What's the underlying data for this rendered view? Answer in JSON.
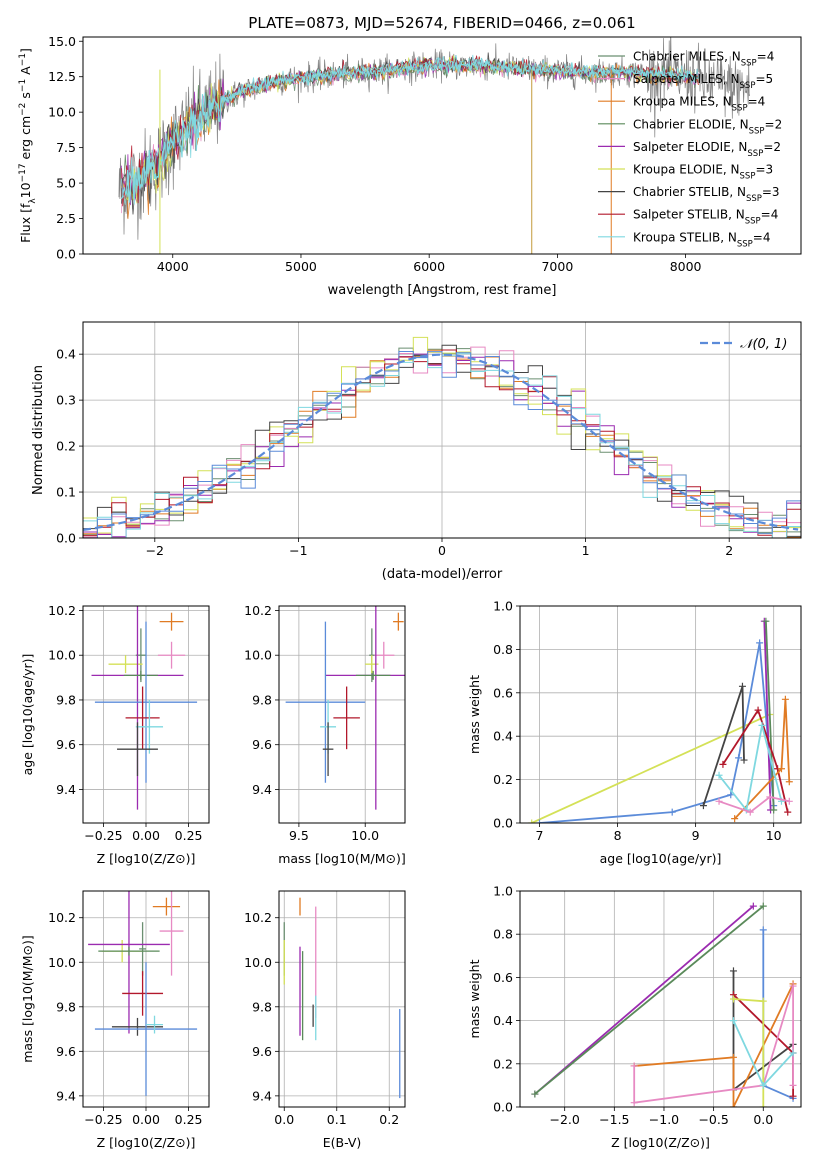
{
  "chart_data": [
    {
      "id": "spectrum",
      "type": "line",
      "title": "PLATE=0873, MJD=52674, FIBERID=0466, z=0.061",
      "xlabel": "wavelength [Angstrom, rest frame]",
      "ylabel_parts": [
        "Flux [f",
        "λ",
        "10",
        "−17",
        " erg cm",
        "−2",
        " s",
        "−1",
        " A",
        "−1",
        "]"
      ],
      "xlim": [
        3300,
        8900
      ],
      "ylim": [
        0,
        15.3
      ],
      "x_ticks": [
        4000,
        5000,
        6000,
        7000,
        8000
      ],
      "y_ticks": [
        0.0,
        2.5,
        5.0,
        7.5,
        10.0,
        12.5,
        15.0
      ],
      "continuum_points": [
        [
          3580,
          4.5
        ],
        [
          3700,
          5.0
        ],
        [
          3900,
          6.5
        ],
        [
          4000,
          7.8
        ],
        [
          4150,
          9.2
        ],
        [
          4300,
          10.3
        ],
        [
          4500,
          11.3
        ],
        [
          4800,
          12.2
        ],
        [
          5200,
          12.6
        ],
        [
          5600,
          12.9
        ],
        [
          6000,
          13.3
        ],
        [
          6400,
          13.3
        ],
        [
          6800,
          13.0
        ],
        [
          7200,
          12.8
        ],
        [
          7500,
          12.8
        ],
        [
          8000,
          12.5
        ],
        [
          8500,
          11.6
        ]
      ],
      "data_color": "#808080",
      "legend": [
        {
          "label": "Chabrier MILES, N",
          "sub": "SSP",
          "suffix": "=4",
          "color": "#6b8f71"
        },
        {
          "label": "Salpeter MILES, N",
          "sub": "SSP",
          "suffix": "=5",
          "color": "#e78ac3"
        },
        {
          "label": "Kroupa MILES, N",
          "sub": "SSP",
          "suffix": "=4",
          "color": "#e07b24"
        },
        {
          "label": "Chabrier ELODIE, N",
          "sub": "SSP",
          "suffix": "=2",
          "color": "#5a8a5a"
        },
        {
          "label": "Salpeter ELODIE, N",
          "sub": "SSP",
          "suffix": "=2",
          "color": "#9b2bb0"
        },
        {
          "label": "Kroupa ELODIE, N",
          "sub": "SSP",
          "suffix": "=3",
          "color": "#d4e157"
        },
        {
          "label": "Chabrier STELIB, N",
          "sub": "SSP",
          "suffix": "=3",
          "color": "#444444"
        },
        {
          "label": "Salpeter STELIB, N",
          "sub": "SSP",
          "suffix": "=4",
          "color": "#b2182b"
        },
        {
          "label": "Kroupa STELIB, N",
          "sub": "SSP",
          "suffix": "=4",
          "color": "#7fd8e0"
        }
      ],
      "grid": false
    },
    {
      "id": "residuals",
      "type": "histogram",
      "xlabel": "(data-model)/error",
      "ylabel": "Normed distribution",
      "xlim": [
        -2.5,
        2.5
      ],
      "ylim": [
        0,
        0.47
      ],
      "x_ticks": [
        -2,
        -1,
        0,
        1,
        2
      ],
      "y_ticks": [
        0.0,
        0.1,
        0.2,
        0.3,
        0.4
      ],
      "bin_width": 0.1,
      "legend": {
        "label": "𝒩(0, 1)",
        "color": "#5b8bd9",
        "style": "dashed",
        "placement": "top-right"
      },
      "series_colors": [
        "#6b8f71",
        "#e78ac3",
        "#e07b24",
        "#9b2bb0",
        "#d4e157",
        "#444444",
        "#b2182b",
        "#7fd8e0",
        "#5b8bd9"
      ],
      "grid": true
    },
    {
      "id": "age_vs_Z",
      "type": "scatter-errorbar",
      "xlabel": "Z [log10(Z/Z⊙)]",
      "ylabel": "age  [log10(age/yr)]",
      "xlim": [
        -0.37,
        0.37
      ],
      "ylim": [
        9.25,
        10.22
      ],
      "x_ticks": [
        -0.25,
        0.0,
        0.25
      ],
      "y_ticks": [
        9.4,
        9.6,
        9.8,
        10.0,
        10.2
      ],
      "points": [
        {
          "x": 0.15,
          "xerr": 0.07,
          "y": 10.15,
          "yerr": 0.04,
          "color": "#e07b24"
        },
        {
          "x": 0.15,
          "xerr": 0.08,
          "y": 10.0,
          "yerr": 0.06,
          "color": "#e78ac3"
        },
        {
          "x": -0.03,
          "xerr": 0.03,
          "y": 10.0,
          "yerr": 0.12,
          "color": "#6b8f71"
        },
        {
          "x": -0.12,
          "xerr": 0.1,
          "y": 9.96,
          "yerr": 0.04,
          "color": "#d4e157"
        },
        {
          "x": -0.05,
          "xerr": 0.27,
          "y": 9.91,
          "yerr": 0.6,
          "color": "#9b2bb0"
        },
        {
          "x": -0.03,
          "xerr": 0.1,
          "y": 9.91,
          "yerr": 0.02,
          "color": "#5a8a5a"
        },
        {
          "x": 0.0,
          "xerr": 0.3,
          "y": 9.79,
          "yerr": 0.36,
          "color": "#5b8bd9"
        },
        {
          "x": -0.02,
          "xerr": 0.1,
          "y": 9.72,
          "yerr": 0.14,
          "color": "#b2182b"
        },
        {
          "x": 0.02,
          "xerr": 0.08,
          "y": 9.68,
          "yerr": 0.12,
          "color": "#7fd8e0"
        },
        {
          "x": -0.05,
          "xerr": 0.12,
          "y": 9.58,
          "yerr": 0.12,
          "color": "#444444"
        }
      ],
      "grid": true
    },
    {
      "id": "age_vs_mass",
      "type": "scatter-errorbar",
      "xlabel": "mass [log10(M/M⊙)]",
      "ylabel": "",
      "xlim": [
        9.35,
        10.3
      ],
      "ylim": [
        9.25,
        10.22
      ],
      "x_ticks": [
        9.5,
        10.0
      ],
      "y_ticks": [
        9.4,
        9.6,
        9.8,
        10.0,
        10.2
      ],
      "points": [
        {
          "x": 10.25,
          "xerr": 0.04,
          "y": 10.15,
          "yerr": 0.04,
          "color": "#e07b24"
        },
        {
          "x": 10.14,
          "xerr": 0.08,
          "y": 10.0,
          "yerr": 0.06,
          "color": "#e78ac3"
        },
        {
          "x": 10.05,
          "xerr": 0.02,
          "y": 10.0,
          "yerr": 0.12,
          "color": "#6b8f71"
        },
        {
          "x": 10.05,
          "xerr": 0.05,
          "y": 9.96,
          "yerr": 0.04,
          "color": "#d4e157"
        },
        {
          "x": 10.08,
          "xerr": 0.38,
          "y": 9.91,
          "yerr": 0.6,
          "color": "#9b2bb0"
        },
        {
          "x": 10.06,
          "xerr": 0.13,
          "y": 9.91,
          "yerr": 0.02,
          "color": "#5a8a5a"
        },
        {
          "x": 9.7,
          "xerr": 0.3,
          "y": 9.79,
          "yerr": 0.36,
          "color": "#5b8bd9"
        },
        {
          "x": 9.86,
          "xerr": 0.1,
          "y": 9.72,
          "yerr": 0.14,
          "color": "#b2182b"
        },
        {
          "x": 9.72,
          "xerr": 0.06,
          "y": 9.68,
          "yerr": 0.12,
          "color": "#7fd8e0"
        },
        {
          "x": 9.72,
          "xerr": 0.04,
          "y": 9.58,
          "yerr": 0.12,
          "color": "#444444"
        }
      ],
      "grid": true
    },
    {
      "id": "massweight_vs_age",
      "type": "line",
      "xlabel": "age  [log10(age/yr)]",
      "ylabel": "mass weight",
      "xlim": [
        6.75,
        10.35
      ],
      "ylim": [
        0,
        1.0
      ],
      "x_ticks": [
        7,
        8,
        9,
        10
      ],
      "y_ticks": [
        0.0,
        0.2,
        0.4,
        0.6,
        0.8,
        1.0
      ],
      "series": [
        {
          "color": "#d4e157",
          "points": [
            [
              6.9,
              0.0
            ],
            [
              9.95,
              0.5
            ]
          ]
        },
        {
          "color": "#5b8bd9",
          "points": [
            [
              7.0,
              0.0
            ],
            [
              8.7,
              0.05
            ],
            [
              9.45,
              0.13
            ],
            [
              9.55,
              0.3
            ],
            [
              9.82,
              0.83
            ],
            [
              10.0,
              0.08
            ]
          ]
        },
        {
          "color": "#9b2bb0",
          "points": [
            [
              9.88,
              0.93
            ],
            [
              9.96,
              0.06
            ]
          ]
        },
        {
          "color": "#5a8a5a",
          "points": [
            [
              9.9,
              0.93
            ],
            [
              10.0,
              0.06
            ]
          ]
        },
        {
          "color": "#444444",
          "points": [
            [
              9.1,
              0.08
            ],
            [
              9.6,
              0.63
            ],
            [
              9.62,
              0.29
            ]
          ]
        },
        {
          "color": "#b2182b",
          "points": [
            [
              9.35,
              0.27
            ],
            [
              9.8,
              0.52
            ],
            [
              10.05,
              0.25
            ],
            [
              10.18,
              0.05
            ]
          ]
        },
        {
          "color": "#e07b24",
          "points": [
            [
              9.5,
              0.02
            ],
            [
              10.1,
              0.25
            ],
            [
              10.15,
              0.57
            ],
            [
              10.2,
              0.19
            ]
          ]
        },
        {
          "color": "#7fd8e0",
          "points": [
            [
              9.3,
              0.22
            ],
            [
              9.65,
              0.06
            ],
            [
              9.85,
              0.45
            ],
            [
              10.1,
              0.1
            ]
          ]
        },
        {
          "color": "#e78ac3",
          "points": [
            [
              9.3,
              0.1
            ],
            [
              9.7,
              0.05
            ],
            [
              9.95,
              0.12
            ],
            [
              10.2,
              0.1
            ]
          ]
        }
      ],
      "grid": true
    },
    {
      "id": "mass_vs_Z",
      "type": "scatter-errorbar",
      "xlabel": "Z [log10(Z/Z⊙)]",
      "ylabel": "mass [log10(M/M⊙)]",
      "xlim": [
        -0.37,
        0.37
      ],
      "ylim": [
        9.35,
        10.32
      ],
      "x_ticks": [
        -0.25,
        0.0,
        0.25
      ],
      "y_ticks": [
        9.4,
        9.6,
        9.8,
        10.0,
        10.2
      ],
      "points": [
        {
          "x": 0.12,
          "xerr": 0.08,
          "y": 10.25,
          "yerr": 0.04,
          "color": "#e07b24"
        },
        {
          "x": 0.15,
          "xerr": 0.07,
          "y": 10.14,
          "yerr": 0.2,
          "color": "#e78ac3"
        },
        {
          "x": -0.02,
          "xerr": 0.02,
          "y": 10.06,
          "yerr": 0.12,
          "color": "#6b8f71"
        },
        {
          "x": -0.14,
          "xerr": 0.12,
          "y": 10.05,
          "yerr": 0.05,
          "color": "#d4e157"
        },
        {
          "x": -0.1,
          "xerr": 0.24,
          "y": 10.08,
          "yerr": 0.4,
          "color": "#9b2bb0"
        },
        {
          "x": -0.1,
          "xerr": 0.18,
          "y": 10.05,
          "yerr": 0.02,
          "color": "#5a8a5a"
        },
        {
          "x": -0.02,
          "xerr": 0.12,
          "y": 9.86,
          "yerr": 0.1,
          "color": "#b2182b"
        },
        {
          "x": -0.05,
          "xerr": 0.15,
          "y": 9.71,
          "yerr": 0.04,
          "color": "#444444"
        },
        {
          "x": 0.0,
          "xerr": 0.3,
          "y": 9.7,
          "yerr": 0.3,
          "color": "#5b8bd9"
        },
        {
          "x": 0.05,
          "xerr": 0.05,
          "y": 9.72,
          "yerr": 0.04,
          "color": "#7fd8e0"
        }
      ],
      "grid": true
    },
    {
      "id": "mass_vs_ebv",
      "type": "scatter-errorbar",
      "xlabel": "E(B-V)",
      "ylabel": "",
      "xlim": [
        -0.01,
        0.23
      ],
      "ylim": [
        9.35,
        10.32
      ],
      "x_ticks": [
        0.0,
        0.1,
        0.2
      ],
      "y_ticks": [
        9.4,
        9.6,
        9.8,
        10.0,
        10.2
      ],
      "points": [
        {
          "x": 0.0,
          "y": 10.06,
          "yerr": 0.12,
          "color": "#6b8f71"
        },
        {
          "x": 0.0,
          "y": 10.0,
          "yerr": 0.1,
          "color": "#d4e157"
        },
        {
          "x": 0.03,
          "y": 10.25,
          "yerr": 0.04,
          "color": "#e07b24"
        },
        {
          "x": 0.03,
          "y": 9.87,
          "yerr": 0.2,
          "color": "#9b2bb0"
        },
        {
          "x": 0.035,
          "y": 9.85,
          "yerr": 0.2,
          "color": "#5a8a5a"
        },
        {
          "x": 0.06,
          "y": 10.0,
          "yerr": 0.25,
          "color": "#e78ac3"
        },
        {
          "x": 0.06,
          "y": 9.75,
          "yerr": 0.1,
          "color": "#7fd8e0"
        },
        {
          "x": 0.055,
          "y": 9.76,
          "yerr": 0.05,
          "color": "#444444"
        },
        {
          "x": 0.22,
          "y": 9.59,
          "yerr": 0.2,
          "color": "#5b8bd9"
        }
      ],
      "grid": true
    },
    {
      "id": "massweight_vs_Z",
      "type": "line",
      "xlabel": "Z [log10(Z/Z⊙)]",
      "ylabel": "mass weight",
      "xlim": [
        -2.45,
        0.38
      ],
      "ylim": [
        0,
        1.0
      ],
      "x_ticks": [
        -2.0,
        -1.5,
        -1.0,
        -0.5,
        0.0
      ],
      "y_ticks": [
        0.0,
        0.2,
        0.4,
        0.6,
        0.8,
        1.0
      ],
      "series": [
        {
          "color": "#9b2bb0",
          "points": [
            [
              -2.3,
              0.06
            ],
            [
              -0.1,
              0.93
            ]
          ]
        },
        {
          "color": "#5a8a5a",
          "points": [
            [
              -2.3,
              0.06
            ],
            [
              0.0,
              0.93
            ]
          ]
        },
        {
          "color": "#5b8bd9",
          "points": [
            [
              0.0,
              0.82
            ],
            [
              0.0,
              0.1
            ],
            [
              0.3,
              0.04
            ]
          ]
        },
        {
          "color": "#444444",
          "points": [
            [
              -0.3,
              0.63
            ],
            [
              -0.3,
              0.08
            ],
            [
              0.3,
              0.29
            ]
          ]
        },
        {
          "color": "#b2182b",
          "points": [
            [
              -0.3,
              0.52
            ],
            [
              0.3,
              0.25
            ],
            [
              0.3,
              0.05
            ]
          ]
        },
        {
          "color": "#e07b24",
          "points": [
            [
              -1.3,
              0.19
            ],
            [
              -0.3,
              0.23
            ],
            [
              -0.3,
              0.0
            ],
            [
              0.3,
              0.57
            ]
          ]
        },
        {
          "color": "#e78ac3",
          "points": [
            [
              -1.3,
              0.19
            ],
            [
              -1.3,
              0.02
            ],
            [
              0.0,
              0.1
            ],
            [
              0.3,
              0.56
            ],
            [
              0.3,
              0.1
            ]
          ]
        },
        {
          "color": "#d4e157",
          "points": [
            [
              -0.3,
              0.5
            ],
            [
              0.0,
              0.49
            ],
            [
              0.0,
              0.0
            ]
          ]
        },
        {
          "color": "#7fd8e0",
          "points": [
            [
              -0.3,
              0.4
            ],
            [
              0.0,
              0.1
            ],
            [
              0.3,
              0.25
            ]
          ]
        }
      ],
      "grid": true
    }
  ]
}
